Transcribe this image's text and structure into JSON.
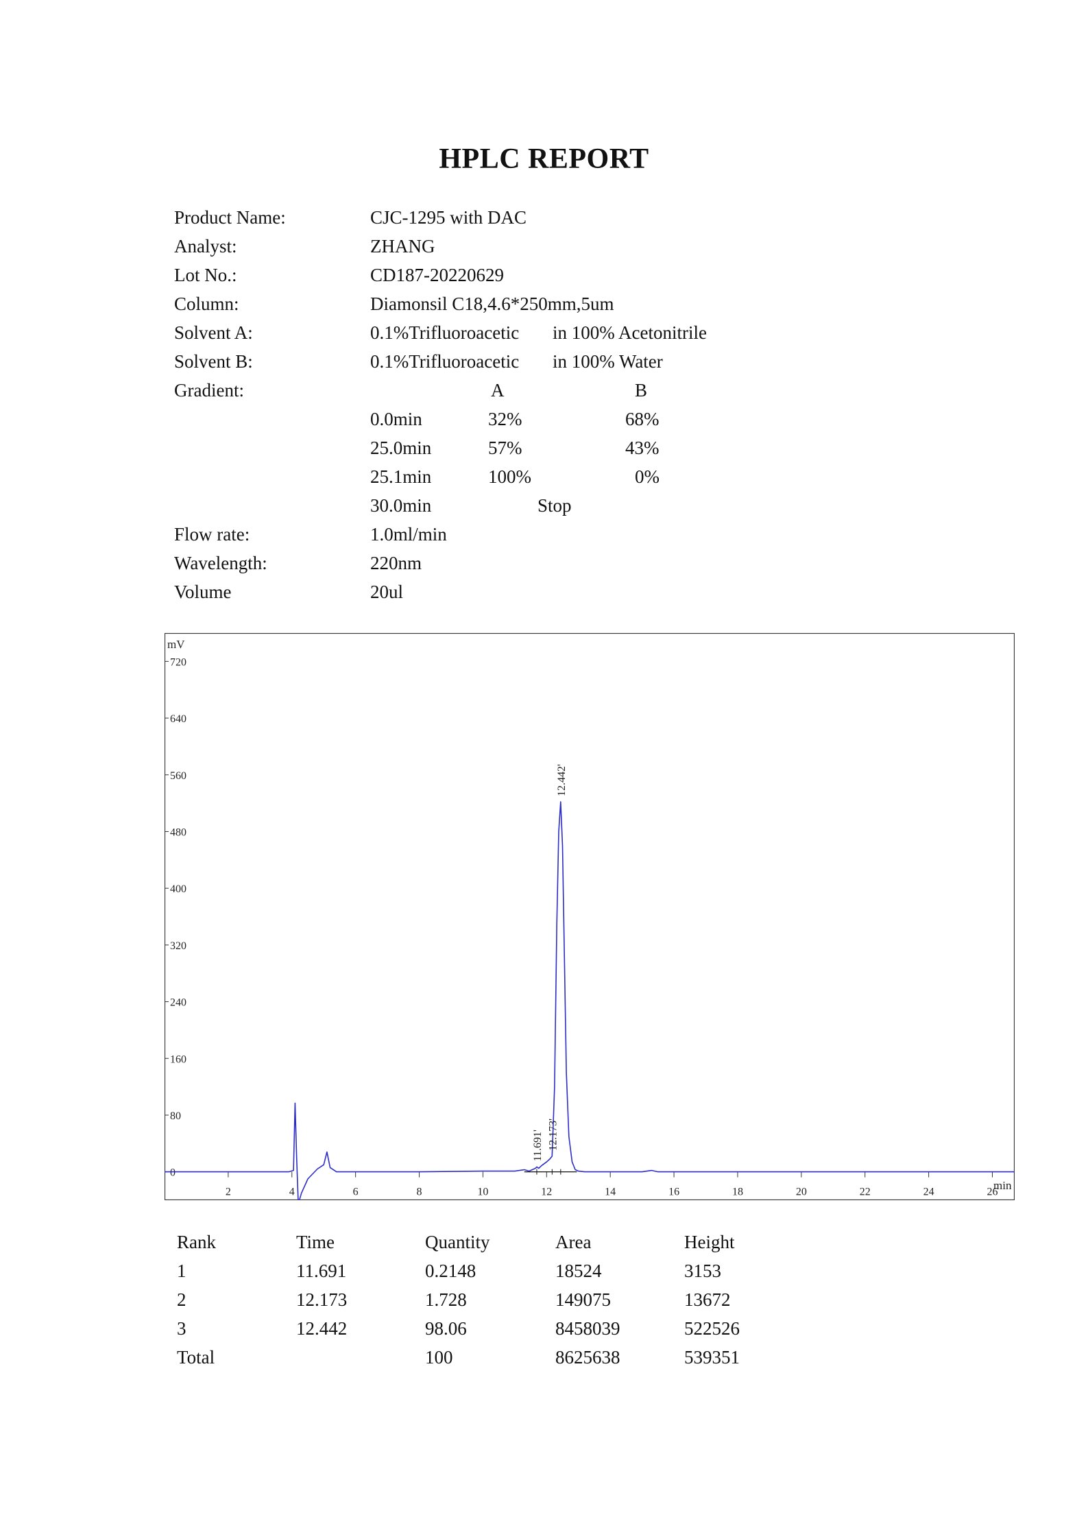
{
  "report": {
    "title": "HPLC REPORT"
  },
  "fields": {
    "product_name": {
      "label": "Product Name:",
      "value": "CJC-1295 with DAC"
    },
    "analyst": {
      "label": "Analyst:",
      "value": "ZHANG"
    },
    "lot_no": {
      "label": "Lot No.:",
      "value": "CD187-20220629"
    },
    "column": {
      "label": "Column:",
      "value": "Diamonsil C18,4.6*250mm,5um"
    },
    "solvent_a": {
      "label": "Solvent A:",
      "value_left": "0.1%Trifluoroacetic",
      "value_right": "in 100% Acetonitrile"
    },
    "solvent_b": {
      "label": "Solvent B:",
      "value_left": "0.1%Trifluoroacetic",
      "value_right": "in 100% Water"
    },
    "gradient": {
      "label": "Gradient:"
    },
    "flow_rate": {
      "label": "Flow rate:",
      "value": "1.0ml/min"
    },
    "wavelength": {
      "label": "Wavelength:",
      "value": "220nm"
    },
    "volume": {
      "label": "Volume",
      "value": "20ul"
    }
  },
  "gradient": {
    "header_a": "A",
    "header_b": "B",
    "rows": [
      {
        "time": "0.0min",
        "a": "32%",
        "b": "68%"
      },
      {
        "time": "25.0min",
        "a": "57%",
        "b": "43%"
      },
      {
        "time": "25.1min",
        "a": "100%",
        "b": "0%"
      },
      {
        "time": "30.0min",
        "stop": "Stop"
      }
    ]
  },
  "chart_data": {
    "type": "line",
    "ylabel": "mV",
    "xlabel": "min",
    "xlim": [
      0,
      26.7
    ],
    "ylim": [
      -40,
      760
    ],
    "x_ticks": [
      2,
      4,
      6,
      8,
      10,
      12,
      14,
      16,
      18,
      20,
      22,
      24,
      26
    ],
    "x_tick_labels": [
      "2",
      "4",
      "6",
      "8",
      "10",
      "12",
      "14",
      "16",
      "18",
      "20",
      "22",
      "24",
      "26"
    ],
    "y_ticks": [
      0,
      80,
      160,
      240,
      320,
      400,
      480,
      560,
      640,
      720
    ],
    "y_tick_labels": [
      "0",
      "80",
      "160",
      "240",
      "320",
      "400",
      "480",
      "560",
      "640",
      "720"
    ],
    "line_color": "#2c2cc8",
    "grid": false,
    "series": [
      {
        "x": [
          0,
          3.9,
          4.05,
          4.1,
          4.15,
          4.2,
          4.3,
          4.5,
          4.8,
          5.0,
          5.1,
          5.2,
          5.4,
          6.0,
          8.0,
          10.0,
          11.0,
          11.3,
          11.45,
          11.55,
          11.65,
          11.691,
          11.75,
          11.85,
          12.0,
          12.1,
          12.173,
          12.25,
          12.32,
          12.38,
          12.442,
          12.5,
          12.56,
          12.62,
          12.7,
          12.8,
          12.9,
          13.0,
          13.2,
          14.0,
          15.0,
          15.3,
          15.5,
          16.0,
          20.0,
          26.7
        ],
        "y": [
          0,
          0,
          2,
          97,
          20,
          -45,
          -30,
          -10,
          4,
          10,
          28,
          6,
          0,
          0,
          0,
          1,
          1,
          3,
          1,
          3,
          5,
          7,
          5,
          9,
          14,
          18,
          22,
          120,
          350,
          480,
          522,
          460,
          300,
          140,
          50,
          14,
          3,
          1,
          0,
          0,
          0,
          2,
          0,
          0,
          0,
          0
        ]
      }
    ],
    "peak_labels": [
      {
        "x": 11.691,
        "y": 7,
        "label": "11.691'"
      },
      {
        "x": 12.173,
        "y": 22,
        "label": "12.173'"
      },
      {
        "x": 12.442,
        "y": 522,
        "label": "12.442'"
      }
    ],
    "baseline": {
      "x_start": 11.3,
      "x_end": 12.95,
      "y": 0
    }
  },
  "results": {
    "headers": [
      "Rank",
      "Time",
      "Quantity",
      "Area",
      "Height"
    ],
    "rows": [
      [
        "1",
        "11.691",
        "0.2148",
        "18524",
        "3153"
      ],
      [
        "2",
        "12.173",
        "1.728",
        "149075",
        "13672"
      ],
      [
        "3",
        "12.442",
        "98.06",
        "8458039",
        "522526"
      ],
      [
        "Total",
        "",
        "100",
        "8625638",
        "539351"
      ]
    ]
  }
}
